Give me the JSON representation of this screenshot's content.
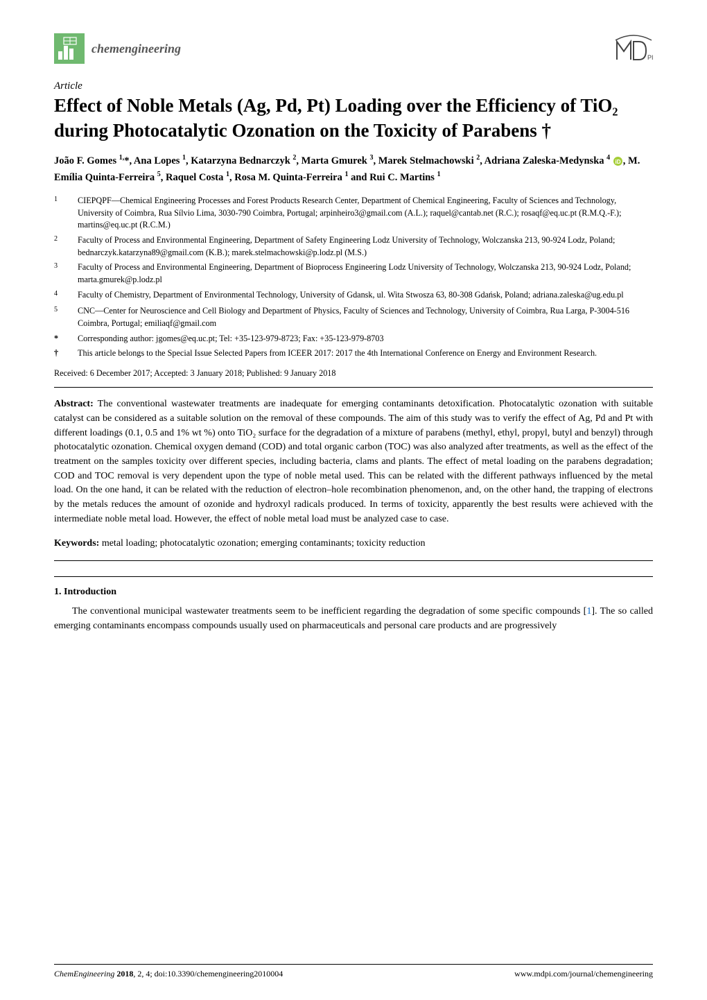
{
  "header": {
    "journal_name": "chemengineering",
    "publisher": "MDPI",
    "journal_icon_colors": {
      "bg": "#6fb96f",
      "fg": "#ffffff"
    },
    "mdpi_colors": {
      "stroke": "#444444"
    }
  },
  "article_type": "Article",
  "title": "Effect of Noble Metals (Ag, Pd, Pt) Loading over the Efficiency of TiO₂ during Photocatalytic Ozonation on the Toxicity of Parabens †",
  "authors_html": "João F. Gomes <sup>1,</sup>*, Ana Lopes <sup>1</sup>, Katarzyna Bednarczyk <sup>2</sup>, Marta Gmurek <sup>3</sup>, Marek Stelmachowski <sup>2</sup>, Adriana Zaleska-Medynska <sup>4</sup> {ORCID}, M. Emília Quinta-Ferreira <sup>5</sup>, Raquel Costa <sup>1</sup>, Rosa M. Quinta-Ferreira <sup>1</sup> and Rui C. Martins <sup>1</sup>",
  "orcid_colors": {
    "fill": "#a6ce39",
    "text": "#ffffff"
  },
  "affiliations": [
    {
      "num": "1",
      "text": "CIEPQPF—Chemical Engineering Processes and Forest Products Research Center, Department of Chemical Engineering, Faculty of Sciences and Technology, University of Coimbra, Rua Sílvio Lima, 3030-790 Coimbra, Portugal; arpinheiro3@gmail.com (A.L.); raquel@cantab.net (R.C.); rosaqf@eq.uc.pt (R.M.Q.-F.); martins@eq.uc.pt (R.C.M.)"
    },
    {
      "num": "2",
      "text": "Faculty of Process and Environmental Engineering, Department of Safety Engineering Lodz University of Technology, Wolczanska 213, 90-924 Lodz, Poland; bednarczyk.katarzyna89@gmail.com (K.B.); marek.stelmachowski@p.lodz.pl (M.S.)"
    },
    {
      "num": "3",
      "text": "Faculty of Process and Environmental Engineering, Department of Bioprocess Engineering Lodz University of Technology, Wolczanska 213, 90-924 Lodz, Poland; marta.gmurek@p.lodz.pl"
    },
    {
      "num": "4",
      "text": "Faculty of Chemistry, Department of Environmental Technology, University of Gdansk, ul. Wita Stwosza 63, 80-308 Gdańsk, Poland; adriana.zaleska@ug.edu.pl"
    },
    {
      "num": "5",
      "text": "CNC—Center for Neuroscience and Cell Biology and Department of Physics, Faculty of Sciences and Technology, University of Coimbra, Rua Larga, P-3004-516 Coimbra, Portugal; emiliaqf@gmail.com"
    },
    {
      "num": "*",
      "text": "Corresponding author: jgomes@eq.uc.pt; Tel: +35-123-979-8723; Fax: +35-123-979-8703"
    },
    {
      "num": "†",
      "text": "This article belongs to the Special Issue Selected Papers from ICEER 2017: 2017 the 4th International Conference on Energy and Environment Research."
    }
  ],
  "received": "Received: 6 December 2017; Accepted: 3 January 2018; Published: 9 January 2018",
  "abstract_label": "Abstract:",
  "abstract": "The conventional wastewater treatments are inadequate for emerging contaminants detoxification. Photocatalytic ozonation with suitable catalyst can be considered as a suitable solution on the removal of these compounds. The aim of this study was to verify the effect of Ag, Pd and Pt with different loadings (0.1, 0.5 and 1% wt %) onto TiO₂ surface for the degradation of a mixture of parabens (methyl, ethyl, propyl, butyl and benzyl) through photocatalytic ozonation. Chemical oxygen demand (COD) and total organic carbon (TOC) was also analyzed after treatments, as well as the effect of the treatment on the samples toxicity over different species, including bacteria, clams and plants. The effect of metal loading on the parabens degradation; COD and TOC removal is very dependent upon the type of noble metal used. This can be related with the different pathways influenced by the metal load. On the one hand, it can be related with the reduction of electron–hole recombination phenomenon, and, on the other hand, the trapping of electrons by the metals reduces the amount of ozonide and hydroxyl radicals produced. In terms of toxicity, apparently the best results were achieved with the intermediate noble metal load. However, the effect of noble metal load must be analyzed case to case.",
  "keywords_label": "Keywords:",
  "keywords": "metal loading; photocatalytic ozonation; emerging contaminants; toxicity reduction",
  "section_heading": "1. Introduction",
  "body_paragraph_pre": "The conventional municipal wastewater treatments seem to be inefficient regarding the degradation of some specific compounds [",
  "body_ref": "1",
  "body_paragraph_post": "]. The so called emerging contaminants encompass compounds usually used on pharmaceuticals and personal care products and are progressively",
  "footer": {
    "left_journal": "ChemEngineering",
    "left_year": "2018",
    "left_rest": ", 2, 4; doi:10.3390/chemengineering2010004",
    "right": "www.mdpi.com/journal/chemengineering"
  }
}
